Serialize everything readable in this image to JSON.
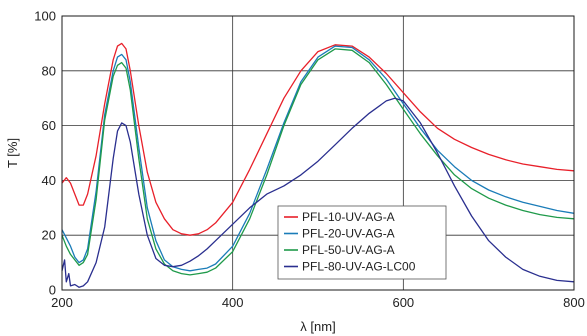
{
  "chart_data": {
    "type": "line",
    "title": "",
    "xlabel": "λ [nm]",
    "ylabel": "T [%]",
    "xlim": [
      200,
      800
    ],
    "ylim": [
      0,
      100
    ],
    "xticks": [
      200,
      400,
      600,
      800
    ],
    "yticks": [
      0,
      20,
      40,
      60,
      80,
      100
    ],
    "grid": true,
    "legend_position": "lower-center",
    "series": [
      {
        "name": "PFL-10-UV-AG-A",
        "color": "#e8202a",
        "points": [
          [
            200,
            39
          ],
          [
            205,
            41
          ],
          [
            210,
            39
          ],
          [
            215,
            35
          ],
          [
            220,
            31
          ],
          [
            225,
            31
          ],
          [
            230,
            35
          ],
          [
            240,
            49
          ],
          [
            250,
            68
          ],
          [
            260,
            84
          ],
          [
            265,
            89
          ],
          [
            270,
            90
          ],
          [
            275,
            88
          ],
          [
            280,
            80
          ],
          [
            290,
            60
          ],
          [
            300,
            43
          ],
          [
            310,
            32
          ],
          [
            320,
            26
          ],
          [
            330,
            22
          ],
          [
            340,
            20.5
          ],
          [
            350,
            20
          ],
          [
            360,
            20.5
          ],
          [
            370,
            22
          ],
          [
            380,
            24.5
          ],
          [
            400,
            32
          ],
          [
            420,
            44
          ],
          [
            440,
            57
          ],
          [
            460,
            70
          ],
          [
            480,
            80
          ],
          [
            500,
            87
          ],
          [
            520,
            89.5
          ],
          [
            540,
            89
          ],
          [
            560,
            85
          ],
          [
            580,
            79
          ],
          [
            600,
            72
          ],
          [
            620,
            65
          ],
          [
            640,
            59
          ],
          [
            660,
            55
          ],
          [
            680,
            52
          ],
          [
            700,
            49.5
          ],
          [
            720,
            47.5
          ],
          [
            740,
            46
          ],
          [
            760,
            45
          ],
          [
            780,
            44
          ],
          [
            800,
            43.5
          ]
        ]
      },
      {
        "name": "PFL-20-UV-AG-A",
        "color": "#1a7cb8",
        "points": [
          [
            200,
            22
          ],
          [
            205,
            19
          ],
          [
            210,
            16
          ],
          [
            215,
            12
          ],
          [
            220,
            10
          ],
          [
            225,
            11
          ],
          [
            230,
            15
          ],
          [
            240,
            36
          ],
          [
            250,
            64
          ],
          [
            260,
            80
          ],
          [
            265,
            85
          ],
          [
            270,
            86
          ],
          [
            275,
            84
          ],
          [
            280,
            76
          ],
          [
            290,
            52
          ],
          [
            300,
            30
          ],
          [
            310,
            18
          ],
          [
            320,
            11
          ],
          [
            330,
            8.5
          ],
          [
            340,
            7.5
          ],
          [
            350,
            7
          ],
          [
            360,
            7.5
          ],
          [
            370,
            8
          ],
          [
            380,
            9.5
          ],
          [
            400,
            16
          ],
          [
            420,
            28
          ],
          [
            440,
            44
          ],
          [
            460,
            61
          ],
          [
            480,
            76
          ],
          [
            500,
            85
          ],
          [
            520,
            89
          ],
          [
            540,
            88.5
          ],
          [
            560,
            84
          ],
          [
            580,
            77
          ],
          [
            600,
            68
          ],
          [
            620,
            59
          ],
          [
            640,
            51
          ],
          [
            660,
            45
          ],
          [
            680,
            40
          ],
          [
            700,
            36.5
          ],
          [
            720,
            34
          ],
          [
            740,
            32
          ],
          [
            760,
            30.5
          ],
          [
            780,
            29
          ],
          [
            800,
            28
          ]
        ]
      },
      {
        "name": "PFL-50-UV-AG-A",
        "color": "#1f9a4a",
        "points": [
          [
            200,
            20
          ],
          [
            205,
            16
          ],
          [
            210,
            13
          ],
          [
            215,
            11
          ],
          [
            220,
            9
          ],
          [
            225,
            10
          ],
          [
            230,
            13
          ],
          [
            240,
            33
          ],
          [
            250,
            62
          ],
          [
            260,
            78
          ],
          [
            265,
            82
          ],
          [
            270,
            83
          ],
          [
            275,
            81
          ],
          [
            280,
            73
          ],
          [
            290,
            48
          ],
          [
            300,
            26
          ],
          [
            310,
            15
          ],
          [
            320,
            9.5
          ],
          [
            330,
            7
          ],
          [
            340,
            6
          ],
          [
            350,
            5.5
          ],
          [
            360,
            6
          ],
          [
            370,
            6.5
          ],
          [
            380,
            8
          ],
          [
            400,
            14
          ],
          [
            420,
            26
          ],
          [
            440,
            42
          ],
          [
            460,
            60
          ],
          [
            480,
            75
          ],
          [
            500,
            84
          ],
          [
            520,
            88
          ],
          [
            540,
            87.5
          ],
          [
            560,
            83
          ],
          [
            580,
            75
          ],
          [
            600,
            66
          ],
          [
            620,
            57
          ],
          [
            640,
            49
          ],
          [
            660,
            42
          ],
          [
            680,
            37
          ],
          [
            700,
            33.5
          ],
          [
            720,
            31
          ],
          [
            740,
            29
          ],
          [
            760,
            27.5
          ],
          [
            780,
            26.5
          ],
          [
            800,
            26
          ]
        ]
      },
      {
        "name": "PFL-80-UV-AG-LC00",
        "color": "#2a2f8f",
        "points": [
          [
            200,
            7
          ],
          [
            203,
            11
          ],
          [
            205,
            3
          ],
          [
            208,
            6
          ],
          [
            210,
            1.5
          ],
          [
            215,
            2
          ],
          [
            220,
            1
          ],
          [
            225,
            1.5
          ],
          [
            230,
            3
          ],
          [
            240,
            10
          ],
          [
            250,
            23
          ],
          [
            260,
            48
          ],
          [
            265,
            58
          ],
          [
            270,
            61
          ],
          [
            275,
            60
          ],
          [
            280,
            54
          ],
          [
            290,
            35
          ],
          [
            300,
            20
          ],
          [
            310,
            11.5
          ],
          [
            320,
            9
          ],
          [
            330,
            8.5
          ],
          [
            340,
            9
          ],
          [
            350,
            10.5
          ],
          [
            360,
            12.5
          ],
          [
            370,
            15
          ],
          [
            380,
            18
          ],
          [
            400,
            24
          ],
          [
            420,
            30
          ],
          [
            440,
            35
          ],
          [
            460,
            38
          ],
          [
            480,
            42
          ],
          [
            500,
            47
          ],
          [
            520,
            53
          ],
          [
            540,
            59
          ],
          [
            560,
            64.5
          ],
          [
            580,
            69
          ],
          [
            590,
            70
          ],
          [
            600,
            69
          ],
          [
            620,
            61
          ],
          [
            640,
            50
          ],
          [
            660,
            38
          ],
          [
            680,
            27
          ],
          [
            700,
            18
          ],
          [
            720,
            12
          ],
          [
            740,
            7.5
          ],
          [
            760,
            5
          ],
          [
            780,
            3.5
          ],
          [
            800,
            3
          ]
        ]
      }
    ]
  }
}
